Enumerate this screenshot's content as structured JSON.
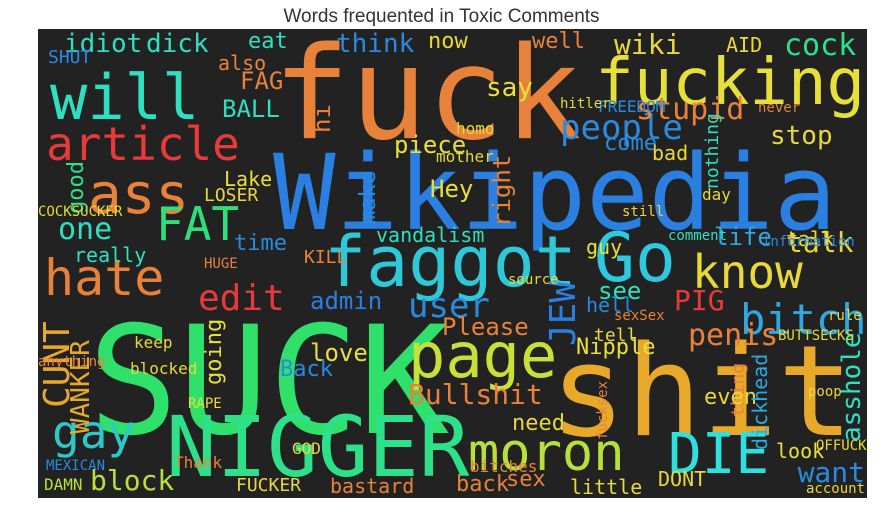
{
  "title": "Words frequented in Toxic Comments",
  "words": [
    {
      "text": "fuck",
      "color": "#e8823a"
    },
    {
      "text": "SUCK",
      "color": "#2fe06a"
    },
    {
      "text": "Wikipedia",
      "color": "#2a7fe0"
    },
    {
      "text": "shit",
      "color": "#e8a92a"
    },
    {
      "text": "NIGGER",
      "color": "#2ee08a"
    },
    {
      "text": "fucking",
      "color": "#e8e03a"
    },
    {
      "text": "faggot",
      "color": "#2ec8d8"
    },
    {
      "text": "will",
      "color": "#2ee0c0"
    },
    {
      "text": "article",
      "color": "#e83a3a"
    },
    {
      "text": "ass",
      "color": "#e8823a"
    },
    {
      "text": "Go",
      "color": "#2ec8e0"
    },
    {
      "text": "page",
      "color": "#c8e03a"
    },
    {
      "text": "hate",
      "color": "#e8823a"
    },
    {
      "text": "gay",
      "color": "#2ec8c8"
    },
    {
      "text": "moron",
      "color": "#b8e03a"
    },
    {
      "text": "DIE",
      "color": "#2ee0e0"
    },
    {
      "text": "know",
      "color": "#e8d83a"
    },
    {
      "text": "FAT",
      "color": "#2ee07a"
    },
    {
      "text": "bitch",
      "color": "#2ea8e0"
    },
    {
      "text": "people",
      "color": "#2a8ae0"
    },
    {
      "text": "stupid",
      "color": "#e8823a"
    },
    {
      "text": "idiot",
      "color": "#2ee0c0"
    },
    {
      "text": "dick",
      "color": "#2ee0c0"
    },
    {
      "text": "wiki",
      "color": "#e8d83a"
    },
    {
      "text": "cock",
      "color": "#2ee08a"
    },
    {
      "text": "edit",
      "color": "#e83a3a"
    },
    {
      "text": "one",
      "color": "#2ee0c0"
    },
    {
      "text": "user",
      "color": "#2a8ae0"
    },
    {
      "text": "talk",
      "color": "#e8d83a"
    },
    {
      "text": "CUNT",
      "color": "#e8a92a"
    },
    {
      "text": "Bullshit",
      "color": "#e8823a"
    },
    {
      "text": "penis",
      "color": "#e8823a"
    },
    {
      "text": "PIG",
      "color": "#e83a3a"
    },
    {
      "text": "JEW",
      "color": "#2a7fe0"
    },
    {
      "text": "WANKER",
      "color": "#e8a92a"
    },
    {
      "text": "block",
      "color": "#b8e03a"
    },
    {
      "text": "want",
      "color": "#2a8ae0"
    },
    {
      "text": "asshole",
      "color": "#2ee0c0"
    },
    {
      "text": "Nipple",
      "color": "#e8e03a"
    },
    {
      "text": "think",
      "color": "#2a8ae0"
    },
    {
      "text": "vandalism",
      "color": "#2ee0c0"
    },
    {
      "text": "life",
      "color": "#2ea8e0"
    },
    {
      "text": "admin",
      "color": "#2a7fe0"
    },
    {
      "text": "make",
      "color": "#2a8ae0"
    },
    {
      "text": "piece",
      "color": "#e8e03a"
    },
    {
      "text": "stop",
      "color": "#e8d83a"
    },
    {
      "text": "love",
      "color": "#e8e03a"
    },
    {
      "text": "say",
      "color": "#e8e03a"
    },
    {
      "text": "now",
      "color": "#e8d83a"
    },
    {
      "text": "Hey",
      "color": "#e8e03a"
    },
    {
      "text": "Please",
      "color": "#e8823a"
    },
    {
      "text": "need",
      "color": "#e8d83a"
    },
    {
      "text": "sex",
      "color": "#e8823a"
    },
    {
      "text": "FAG",
      "color": "#e8823a"
    },
    {
      "text": "BALL",
      "color": "#2ee0c0"
    },
    {
      "text": "hi",
      "color": "#e8823a"
    },
    {
      "text": "right",
      "color": "#e8823a"
    },
    {
      "text": "time",
      "color": "#2a8ae0"
    },
    {
      "text": "see",
      "color": "#2ee0c0"
    },
    {
      "text": "going",
      "color": "#e8e03a"
    },
    {
      "text": "Back",
      "color": "#2a8ae0"
    },
    {
      "text": "keep",
      "color": "#e8d83a"
    },
    {
      "text": "little",
      "color": "#e8d83a"
    },
    {
      "text": "DONT",
      "color": "#e8d83a"
    },
    {
      "text": "back",
      "color": "#e8823a"
    },
    {
      "text": "bastard",
      "color": "#e8823a"
    },
    {
      "text": "FUCKER",
      "color": "#e8d83a"
    },
    {
      "text": "DAMN",
      "color": "#b8e03a"
    },
    {
      "text": "really",
      "color": "#2ee0c0"
    },
    {
      "text": "good",
      "color": "#2ee08a"
    },
    {
      "text": "eat",
      "color": "#2ee0c0"
    },
    {
      "text": "also",
      "color": "#e8823a"
    },
    {
      "text": "AID",
      "color": "#e8d83a"
    },
    {
      "text": "SHUT",
      "color": "#2a8ae0"
    },
    {
      "text": "Lake",
      "color": "#e8e03a"
    },
    {
      "text": "LOSER",
      "color": "#e8d83a"
    },
    {
      "text": "COCKSUCKER",
      "color": "#e8d83a"
    },
    {
      "text": "KILL",
      "color": "#e8823a"
    },
    {
      "text": "blocked",
      "color": "#e8d83a"
    },
    {
      "text": "anything",
      "color": "#e8823a"
    },
    {
      "text": "thing",
      "color": "#e8823a"
    },
    {
      "text": "even",
      "color": "#e8d83a"
    },
    {
      "text": "dickhead",
      "color": "#2ea8e0"
    },
    {
      "text": "look",
      "color": "#e8e03a"
    },
    {
      "text": "tell",
      "color": "#e8d83a"
    },
    {
      "text": "hell",
      "color": "#2a8ae0"
    },
    {
      "text": "come",
      "color": "#2a8ae0"
    },
    {
      "text": "bad",
      "color": "#e8d83a"
    },
    {
      "text": "guy",
      "color": "#e8e03a"
    },
    {
      "text": "talk",
      "color": "#e8d83a"
    },
    {
      "text": "information",
      "color": "#2a8ae0"
    },
    {
      "text": "RAPE",
      "color": "#e8e03a"
    },
    {
      "text": "GOD",
      "color": "#e8d83a"
    },
    {
      "text": "HUGE",
      "color": "#e8823a"
    },
    {
      "text": "FREEDOM",
      "color": "#2a8ae0"
    },
    {
      "text": "hitler",
      "color": "#e8d83a"
    },
    {
      "text": "homo",
      "color": "#e8d83a"
    },
    {
      "text": "mother",
      "color": "#e8d83a"
    },
    {
      "text": "nothing",
      "color": "#2ee0c0"
    },
    {
      "text": "never",
      "color": "#e8823a"
    },
    {
      "text": "day",
      "color": "#e8d83a"
    },
    {
      "text": "OFFUCK",
      "color": "#e8d83a"
    },
    {
      "text": "sexSex",
      "color": "#e8823a"
    },
    {
      "text": "fucksex",
      "color": "#e8823a"
    },
    {
      "text": "BUTTSECKS",
      "color": "#e8d83a"
    },
    {
      "text": "poop",
      "color": "#e8d83a"
    },
    {
      "text": "account",
      "color": "#e8d83a"
    },
    {
      "text": "Thank",
      "color": "#e8823a"
    },
    {
      "text": "MEXICAN",
      "color": "#2a8ae0"
    },
    {
      "text": "bitches",
      "color": "#e8823a"
    },
    {
      "text": "comment",
      "color": "#2ee0c0"
    },
    {
      "text": "rule",
      "color": "#e8d83a"
    },
    {
      "text": "source",
      "color": "#e8d83a"
    },
    {
      "text": "well",
      "color": "#e8823a"
    },
    {
      "text": "still",
      "color": "#e8d83a"
    }
  ]
}
